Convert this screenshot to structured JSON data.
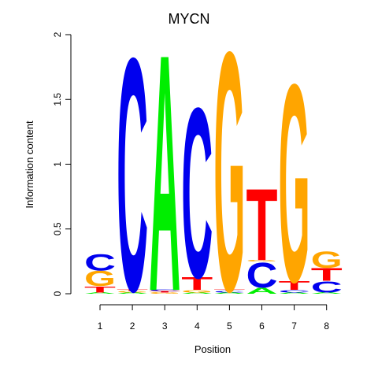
{
  "chart_data": {
    "type": "sequence-logo",
    "title": "MYCN",
    "xlabel": "Position",
    "ylabel": "Information content",
    "ylim": [
      0,
      2
    ],
    "yticks": [
      "0",
      "0.5",
      "1",
      "1.5",
      "2"
    ],
    "categories": [
      "1",
      "2",
      "3",
      "4",
      "5",
      "6",
      "7",
      "8"
    ],
    "colors": {
      "A": "#00ee00",
      "C": "#0000ee",
      "G": "#ffa500",
      "T": "#ff0000"
    },
    "positions": [
      {
        "position": "1",
        "stack": [
          {
            "letter": "A",
            "height": 0.01
          },
          {
            "letter": "T",
            "height": 0.05
          },
          {
            "letter": "G",
            "height": 0.12
          },
          {
            "letter": "C",
            "height": 0.13
          }
        ]
      },
      {
        "position": "2",
        "stack": [
          {
            "letter": "A",
            "height": 0.01
          },
          {
            "letter": "G",
            "height": 0.01
          },
          {
            "letter": "T",
            "height": 0.01
          },
          {
            "letter": "C",
            "height": 1.85
          }
        ]
      },
      {
        "position": "3",
        "stack": [
          {
            "letter": "G",
            "height": 0.01
          },
          {
            "letter": "T",
            "height": 0.01
          },
          {
            "letter": "C",
            "height": 0.01
          },
          {
            "letter": "A",
            "height": 1.88
          }
        ]
      },
      {
        "position": "4",
        "stack": [
          {
            "letter": "A",
            "height": 0.01
          },
          {
            "letter": "G",
            "height": 0.02
          },
          {
            "letter": "T",
            "height": 0.1
          },
          {
            "letter": "C",
            "height": 1.35
          }
        ]
      },
      {
        "position": "5",
        "stack": [
          {
            "letter": "A",
            "height": 0.01
          },
          {
            "letter": "C",
            "height": 0.01
          },
          {
            "letter": "T",
            "height": 0.01
          },
          {
            "letter": "G",
            "height": 1.9
          }
        ]
      },
      {
        "position": "6",
        "stack": [
          {
            "letter": "A",
            "height": 0.05
          },
          {
            "letter": "C",
            "height": 0.2
          },
          {
            "letter": "G",
            "height": 0.01
          },
          {
            "letter": "T",
            "height": 0.57
          }
        ]
      },
      {
        "position": "7",
        "stack": [
          {
            "letter": "A",
            "height": 0.01
          },
          {
            "letter": "C",
            "height": 0.02
          },
          {
            "letter": "T",
            "height": 0.07
          },
          {
            "letter": "G",
            "height": 1.57
          }
        ]
      },
      {
        "position": "8",
        "stack": [
          {
            "letter": "A",
            "height": 0.01
          },
          {
            "letter": "C",
            "height": 0.09
          },
          {
            "letter": "T",
            "height": 0.1
          },
          {
            "letter": "G",
            "height": 0.13
          }
        ]
      }
    ]
  }
}
